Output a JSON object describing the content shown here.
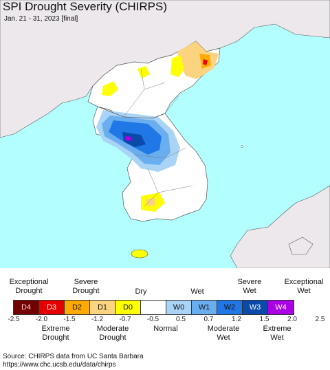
{
  "header": {
    "title": "SPI Drought Severity (CHIRPS)",
    "subtitle": "Jan. 21 - 31, 2023 [final]"
  },
  "legend": {
    "top_labels": [
      "Exceptional\nDrought",
      "Severe\nDrought",
      "Dry",
      "Wet",
      "Severe\nWet",
      "Exceptional\nWet"
    ],
    "bottom_labels": [
      "Extreme\nDrought",
      "Moderate\nDrought",
      "Normal",
      "Moderate\nWet",
      "Extreme\nWet"
    ],
    "categories": [
      {
        "code": "D4",
        "color": "#730000"
      },
      {
        "code": "D3",
        "color": "#e60000"
      },
      {
        "code": "D2",
        "color": "#ffaa00"
      },
      {
        "code": "D1",
        "color": "#fcd37f"
      },
      {
        "code": "D0",
        "color": "#ffff00"
      },
      {
        "code": "",
        "color": "#ffffff"
      },
      {
        "code": "W0",
        "color": "#aad4f5"
      },
      {
        "code": "W1",
        "color": "#6aaef0"
      },
      {
        "code": "W2",
        "color": "#1f78e6"
      },
      {
        "code": "W3",
        "color": "#0a4aa8"
      },
      {
        "code": "W4",
        "color": "#aa00e6"
      }
    ],
    "ticks": [
      "-2.5",
      "-2.0",
      "-1.5",
      "-1.2",
      "-0.7",
      "-0.5",
      "0.5",
      "0.7",
      "1.2",
      "1.5",
      "2.0",
      "2.5"
    ]
  },
  "footer": {
    "source_line1": "Source: CHIRPS data from UC Santa Barbara",
    "source_line2": "https://www.chc.ucsb.edu/data/chirps"
  },
  "colors": {
    "sea": "#b3ffff",
    "land_outside": "#ece8ec",
    "normal": "#ffffff"
  }
}
